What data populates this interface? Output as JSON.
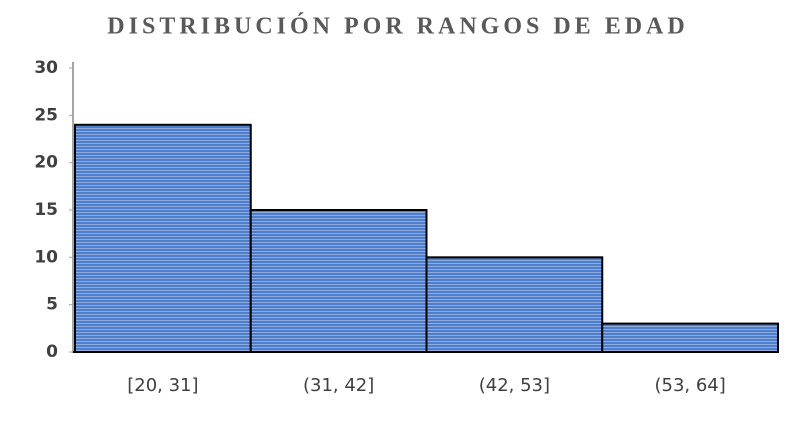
{
  "chart_data": {
    "type": "bar",
    "title": "DISTRIBUCIÓN POR RANGOS DE EDAD",
    "categories": [
      "[20, 31]",
      "(31, 42]",
      "(42, 53]",
      "(53, 64]"
    ],
    "values": [
      24,
      15,
      10,
      3
    ],
    "color": "#4f7fcc",
    "ylim": [
      0,
      30
    ],
    "yticks": [
      0,
      5,
      10,
      15,
      20,
      25,
      30
    ],
    "grid": false
  }
}
